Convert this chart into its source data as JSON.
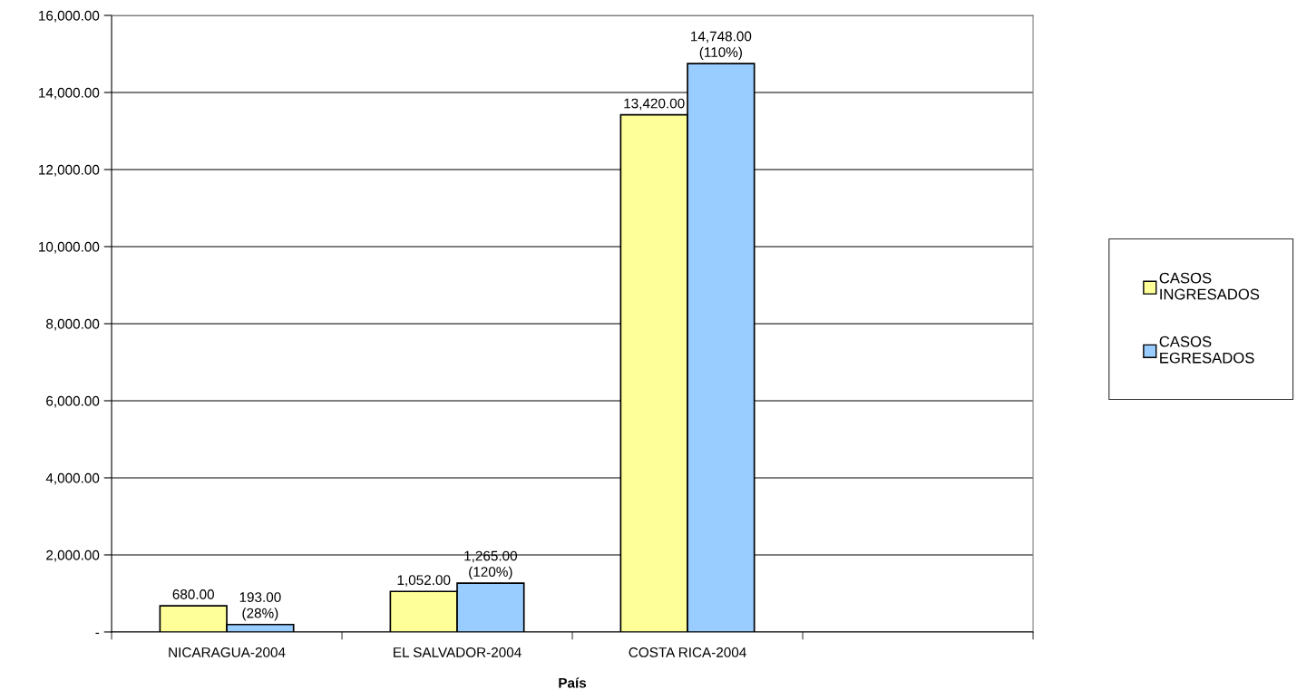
{
  "chart_data": {
    "type": "bar",
    "xlabel": "País",
    "categories": [
      "NICARAGUA-2004",
      "EL SALVADOR-2004",
      "COSTA RICA-2004",
      null
    ],
    "series": [
      {
        "name": "CASOS\nINGRESADOS",
        "color": "#ffff99",
        "values": [
          680,
          1052,
          13420,
          null
        ],
        "value_labels": [
          "680.00",
          "1,052.00",
          "13,420.00",
          null
        ]
      },
      {
        "name": "CASOS\nEGRESADOS",
        "color": "#99ccff",
        "values": [
          193,
          1265,
          14748,
          null
        ],
        "value_labels": [
          "193.00\n(28%)",
          "1,265.00\n(120%)",
          "14,748.00\n(110%)",
          null
        ]
      }
    ],
    "ylim": [
      0,
      16000
    ],
    "yticks": [
      {
        "value": 0,
        "label": "-"
      },
      {
        "value": 2000,
        "label": "2,000.00"
      },
      {
        "value": 4000,
        "label": "4,000.00"
      },
      {
        "value": 6000,
        "label": "6,000.00"
      },
      {
        "value": 8000,
        "label": "8,000.00"
      },
      {
        "value": 10000,
        "label": "10,000.00"
      },
      {
        "value": 12000,
        "label": "12,000.00"
      },
      {
        "value": 14000,
        "label": "14,000.00"
      },
      {
        "value": 16000,
        "label": "16,000.00"
      }
    ],
    "grid": "y",
    "legend": "right"
  }
}
